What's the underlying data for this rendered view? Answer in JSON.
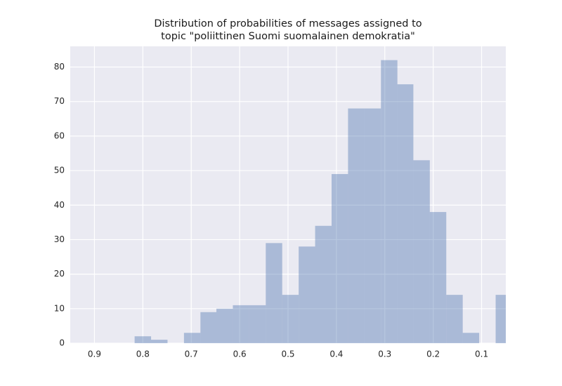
{
  "chart_data": {
    "type": "histogram",
    "title": [
      "Distribution of probabilities of messages assigned to",
      "topic \"poliittinen Suomi suomalainen demokratia\""
    ],
    "bins": [
      0.037,
      0.071,
      0.105,
      0.139,
      0.173,
      0.207,
      0.241,
      0.274,
      0.308,
      0.342,
      0.376,
      0.41,
      0.444,
      0.478,
      0.512,
      0.546,
      0.58,
      0.614,
      0.648,
      0.681,
      0.715,
      0.749,
      0.783,
      0.817
    ],
    "values": [
      14,
      0,
      3,
      14,
      38,
      53,
      75,
      82,
      68,
      68,
      49,
      34,
      28,
      14,
      29,
      11,
      11,
      10,
      9,
      3,
      0,
      1,
      2
    ],
    "color": "#4c72b0",
    "xlim": [
      0.95,
      0.05
    ],
    "xticks": [
      0.9,
      0.8,
      0.7,
      0.6,
      0.5,
      0.4,
      0.3,
      0.2,
      0.1
    ],
    "ylim": [
      0,
      86
    ],
    "yticks": [
      0,
      10,
      20,
      30,
      40,
      50,
      60,
      70,
      80
    ],
    "grid": true
  }
}
